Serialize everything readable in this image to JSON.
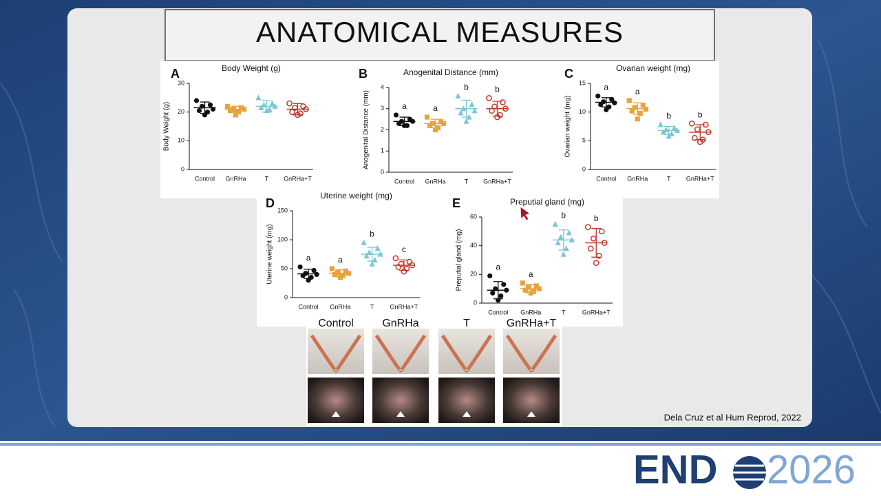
{
  "slide": {
    "title": "ANATOMICAL MEASURES",
    "citation": "Dela Cruz et al Hum Reprod, 2022",
    "photo_labels": [
      "Control",
      "GnRHa",
      "T",
      "GnRHa+T"
    ],
    "logo": {
      "left": "END",
      "right": "2026"
    }
  },
  "chart_data": [
    {
      "type": "dot",
      "panel": "A",
      "title": "Body Weight (g)",
      "y_label": "Body Weight (g)",
      "ylim": [
        0,
        30
      ],
      "yticks": [
        0,
        10,
        20,
        30
      ],
      "groups": [
        {
          "name": "Control",
          "color": "#111111",
          "marker": "circle",
          "values": [
            24,
            22.5,
            22,
            21,
            20.5,
            20,
            19
          ],
          "mean": 21.5,
          "sd": 2
        },
        {
          "name": "GnRHa",
          "color": "#e8a33a",
          "marker": "square",
          "values": [
            22,
            21.5,
            21,
            21,
            20.5,
            20,
            19
          ],
          "mean": 21,
          "sd": 1
        },
        {
          "name": "T",
          "color": "#7cc6d6",
          "marker": "triangle",
          "values": [
            25,
            23,
            22.5,
            22,
            21.5,
            21,
            20.5
          ],
          "mean": 22,
          "sd": 2
        },
        {
          "name": "GnRHa+T",
          "color": "#c0392b",
          "marker": "open-circle",
          "values": [
            23,
            22,
            21.5,
            21,
            20,
            19.5,
            19
          ],
          "mean": 21,
          "sd": 2
        }
      ]
    },
    {
      "type": "dot",
      "panel": "B",
      "title": "Anogenital Distance (mm)",
      "y_label": "Anogenital Distance (mm)",
      "ylim": [
        0,
        4
      ],
      "yticks": [
        0,
        1,
        2,
        3,
        4
      ],
      "groups": [
        {
          "name": "Control",
          "color": "#111111",
          "marker": "circle",
          "values": [
            2.7,
            2.5,
            2.4,
            2.4,
            2.3,
            2.2,
            2.2
          ],
          "mean": 2.4,
          "sd": 0.2,
          "letter": "a"
        },
        {
          "name": "GnRHa",
          "color": "#e8a33a",
          "marker": "square",
          "values": [
            2.6,
            2.4,
            2.3,
            2.3,
            2.2,
            2.1,
            2.0
          ],
          "mean": 2.3,
          "sd": 0.2,
          "letter": "a"
        },
        {
          "name": "T",
          "color": "#7cc6d6",
          "marker": "triangle",
          "values": [
            3.6,
            3.2,
            3.0,
            2.9,
            2.8,
            2.6,
            2.4
          ],
          "mean": 3.0,
          "sd": 0.4,
          "letter": "b"
        },
        {
          "name": "GnRHa+T",
          "color": "#c0392b",
          "marker": "open-circle",
          "values": [
            3.5,
            3.3,
            3.1,
            3.0,
            2.9,
            2.7,
            2.6
          ],
          "mean": 3.0,
          "sd": 0.35,
          "letter": "b"
        }
      ]
    },
    {
      "type": "dot",
      "panel": "C",
      "title": "Ovarian weight (mg)",
      "y_label": "Ovarian weight (mg)",
      "ylim": [
        0,
        15
      ],
      "yticks": [
        0,
        5,
        10,
        15
      ],
      "groups": [
        {
          "name": "Control",
          "color": "#111111",
          "marker": "circle",
          "values": [
            12.8,
            12.2,
            11.8,
            11.6,
            11.3,
            10.9,
            10.4
          ],
          "mean": 11.7,
          "sd": 0.8,
          "letter": "a"
        },
        {
          "name": "GnRHa",
          "color": "#e8a33a",
          "marker": "square",
          "values": [
            12,
            11.2,
            10.8,
            10.5,
            10.2,
            9.8,
            8.8
          ],
          "mean": 10.6,
          "sd": 1,
          "letter": "a"
        },
        {
          "name": "T",
          "color": "#7cc6d6",
          "marker": "triangle",
          "values": [
            7.8,
            7.2,
            6.9,
            6.8,
            6.5,
            6.2,
            5.8
          ],
          "mean": 6.8,
          "sd": 0.7,
          "letter": "b"
        },
        {
          "name": "GnRHa+T",
          "color": "#c0392b",
          "marker": "open-circle",
          "values": [
            8,
            7.8,
            7,
            6.5,
            5.5,
            5.2,
            4.8
          ],
          "mean": 6.5,
          "sd": 1.3,
          "letter": "b"
        }
      ]
    },
    {
      "type": "dot",
      "panel": "D",
      "title": "Uterine weight (mg)",
      "y_label": "Uterine weight (mg)",
      "ylim": [
        0,
        150
      ],
      "yticks": [
        0,
        50,
        100,
        150
      ],
      "groups": [
        {
          "name": "Control",
          "color": "#111111",
          "marker": "circle",
          "values": [
            53,
            47,
            42,
            40,
            38,
            35,
            30
          ],
          "mean": 41,
          "sd": 8,
          "letter": "a"
        },
        {
          "name": "GnRHa",
          "color": "#e8a33a",
          "marker": "square",
          "values": [
            50,
            46,
            43,
            42,
            40,
            38,
            35
          ],
          "mean": 42,
          "sd": 6,
          "letter": "a"
        },
        {
          "name": "T",
          "color": "#7cc6d6",
          "marker": "triangle",
          "values": [
            95,
            85,
            78,
            75,
            72,
            65,
            58
          ],
          "mean": 75,
          "sd": 12,
          "letter": "b"
        },
        {
          "name": "GnRHa+T",
          "color": "#c0392b",
          "marker": "open-circle",
          "values": [
            68,
            62,
            58,
            56,
            53,
            50,
            45
          ],
          "mean": 56,
          "sd": 9,
          "letter": "c"
        }
      ]
    },
    {
      "type": "dot",
      "panel": "E",
      "title": "Preputial gland (mg)",
      "y_label": "Preputial gland (mg)",
      "ylim": [
        0,
        60
      ],
      "yticks": [
        0,
        20,
        40,
        60
      ],
      "groups": [
        {
          "name": "Control",
          "color": "#111111",
          "marker": "circle",
          "values": [
            19,
            13,
            10,
            9,
            7,
            5,
            2
          ],
          "mean": 9,
          "sd": 6,
          "letter": "a"
        },
        {
          "name": "GnRHa",
          "color": "#e8a33a",
          "marker": "square",
          "values": [
            14,
            12,
            11,
            10,
            9,
            8,
            7
          ],
          "mean": 10,
          "sd": 3,
          "letter": "a"
        },
        {
          "name": "T",
          "color": "#7cc6d6",
          "marker": "triangle",
          "values": [
            55,
            49,
            46,
            44,
            42,
            38,
            34
          ],
          "mean": 44,
          "sd": 7,
          "letter": "b"
        },
        {
          "name": "GnRHa+T",
          "color": "#c0392b",
          "marker": "open-circle",
          "values": [
            53,
            50,
            45,
            42,
            38,
            33,
            28
          ],
          "mean": 42,
          "sd": 10,
          "letter": "b"
        }
      ]
    }
  ]
}
